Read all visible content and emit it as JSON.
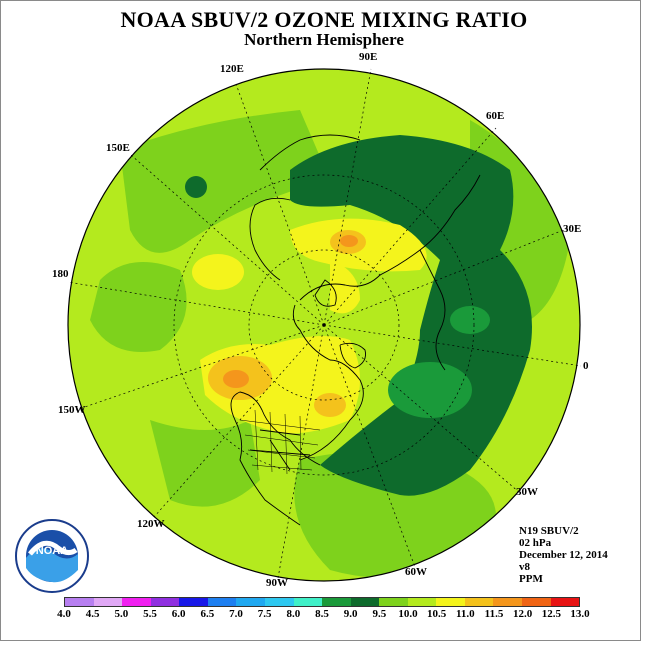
{
  "title": "NOAA SBUV/2 OZONE MIXING RATIO",
  "subtitle": "Northern Hemisphere",
  "longitude_labels": [
    {
      "id": "lon-90e",
      "text": "90E"
    },
    {
      "id": "lon-60e",
      "text": "60E"
    },
    {
      "id": "lon-30e",
      "text": "30E"
    },
    {
      "id": "lon-0",
      "text": "0"
    },
    {
      "id": "lon-30w",
      "text": "30W"
    },
    {
      "id": "lon-60w",
      "text": "60W"
    },
    {
      "id": "lon-90w",
      "text": "90W"
    },
    {
      "id": "lon-120w",
      "text": "120W"
    },
    {
      "id": "lon-150w",
      "text": "150W"
    },
    {
      "id": "lon-180",
      "text": "180"
    },
    {
      "id": "lon-150e",
      "text": "150E"
    },
    {
      "id": "lon-120e",
      "text": "120E"
    }
  ],
  "info": {
    "satellite": "N19 SBUV/2",
    "level": "02 hPa",
    "date": "December 12, 2014",
    "version": "v8",
    "units": "PPM"
  },
  "logo_text": "NOAA",
  "colorbar": {
    "ticks": [
      "4.0",
      "4.5",
      "5.0",
      "5.5",
      "6.0",
      "6.5",
      "7.0",
      "7.5",
      "8.0",
      "8.5",
      "9.0",
      "9.5",
      "10.0",
      "10.5",
      "11.0",
      "11.5",
      "12.0",
      "12.5",
      "13.0"
    ],
    "colors": [
      "#b77ff0",
      "#e0a8f5",
      "#f020f0",
      "#9030e0",
      "#1818e8",
      "#1e7ff0",
      "#20a8f0",
      "#2ec8f0",
      "#40f0c8",
      "#1a9a3a",
      "#0e6b2c",
      "#7ed21c",
      "#b4ea1e",
      "#f4f41c",
      "#f4c21c",
      "#f4961c",
      "#f06414",
      "#e81414",
      "#8c5a3c"
    ]
  },
  "colors": {
    "dark_green": "#0e6b2c",
    "mid_green": "#7ed21c",
    "light_green": "#b4ea1e",
    "yellow": "#f4f41c",
    "orange": "#f4c21c",
    "dark_orange": "#f4961c"
  }
}
